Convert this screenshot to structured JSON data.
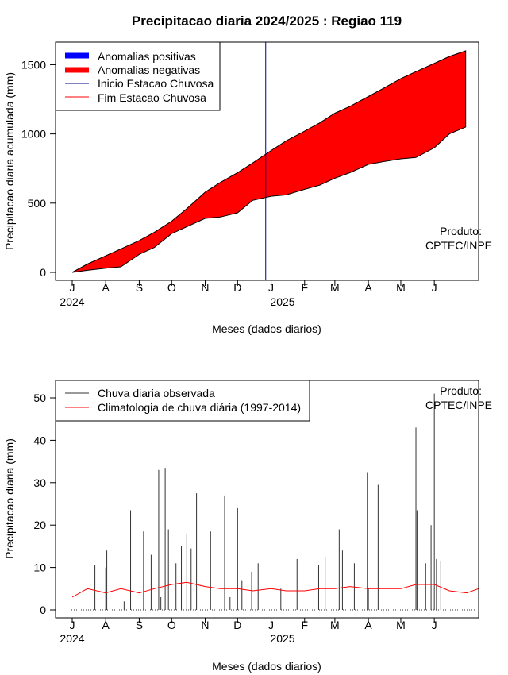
{
  "title": "Precipitacao diaria 2024/2025 : Regiao 119",
  "months": [
    "J",
    "A",
    "S",
    "O",
    "N",
    "D",
    "J",
    "F",
    "M",
    "A",
    "M",
    "J"
  ],
  "year_labels": [
    "2024",
    "2025"
  ],
  "xlabel": "Meses (dados diarios)",
  "product_label_1": "Produto:",
  "product_label_2": "CPTEC/INPE",
  "colors": {
    "positive": "#0000ff",
    "negative": "#ff0000",
    "start": "#00008b",
    "end": "#ff0000",
    "observed": "#333333",
    "clim": "#ff0000"
  },
  "chart_data": [
    {
      "type": "area",
      "ylabel": "Precipitacao diaria acumulada (mm)",
      "ylim": [
        0,
        1600
      ],
      "yticks": [
        0,
        500,
        1000,
        1500
      ],
      "legend": {
        "placement": "top-left",
        "entries": [
          "Anomalias positivas",
          "Anomalias negativas",
          "Inicio Estacao Chuvosa",
          "Fim Estacao Chuvosa"
        ]
      },
      "rain_season_start": "2024-12-27",
      "series": [
        {
          "name": "observed_cumulative",
          "x": [
            "2024-07-01",
            "2024-07-15",
            "2024-08-01",
            "2024-08-15",
            "2024-09-01",
            "2024-09-15",
            "2024-10-01",
            "2024-10-15",
            "2024-11-01",
            "2024-11-15",
            "2024-12-01",
            "2024-12-15",
            "2025-01-01",
            "2025-01-15",
            "2025-02-01",
            "2025-02-15",
            "2025-03-01",
            "2025-03-15",
            "2025-04-01",
            "2025-04-15",
            "2025-05-01",
            "2025-05-15",
            "2025-06-01",
            "2025-06-15",
            "2025-06-30"
          ],
          "y": [
            0,
            15,
            30,
            40,
            130,
            180,
            280,
            330,
            390,
            400,
            430,
            520,
            550,
            560,
            600,
            630,
            680,
            720,
            780,
            800,
            820,
            830,
            900,
            1000,
            1050
          ]
        },
        {
          "name": "climatology_cumulative",
          "x": [
            "2024-07-01",
            "2024-07-15",
            "2024-08-01",
            "2024-08-15",
            "2024-09-01",
            "2024-09-15",
            "2024-10-01",
            "2024-10-15",
            "2024-11-01",
            "2024-11-15",
            "2024-12-01",
            "2024-12-15",
            "2025-01-01",
            "2025-01-15",
            "2025-02-01",
            "2025-02-15",
            "2025-03-01",
            "2025-03-15",
            "2025-04-01",
            "2025-04-15",
            "2025-05-01",
            "2025-05-15",
            "2025-06-01",
            "2025-06-15",
            "2025-06-30"
          ],
          "y": [
            0,
            60,
            120,
            170,
            230,
            290,
            370,
            460,
            580,
            650,
            720,
            790,
            880,
            950,
            1020,
            1080,
            1150,
            1200,
            1270,
            1330,
            1400,
            1450,
            1510,
            1560,
            1600
          ]
        }
      ]
    },
    {
      "type": "bar",
      "ylabel": "Precipitacao diaria (mm)",
      "ylim": [
        0,
        52
      ],
      "yticks": [
        0,
        10,
        20,
        30,
        40,
        50
      ],
      "legend": {
        "placement": "top-left",
        "entries": [
          "Chuva diaria observada",
          "Climatologia de chuva diária (1997-2014)"
        ]
      },
      "observed_daily": {
        "x": [
          "2024-07-22",
          "2024-08-01",
          "2024-08-02",
          "2024-08-18",
          "2024-08-24",
          "2024-09-05",
          "2024-09-12",
          "2024-09-19",
          "2024-09-21",
          "2024-09-25",
          "2024-09-28",
          "2024-10-05",
          "2024-10-10",
          "2024-10-15",
          "2024-10-19",
          "2024-10-24",
          "2024-11-06",
          "2024-11-19",
          "2024-11-24",
          "2024-12-01",
          "2024-12-05",
          "2024-12-14",
          "2024-12-20",
          "2025-01-10",
          "2025-01-25",
          "2025-02-14",
          "2025-02-20",
          "2025-03-05",
          "2025-03-08",
          "2025-03-19",
          "2025-03-31",
          "2025-04-01",
          "2025-04-10",
          "2025-05-15",
          "2025-05-16",
          "2025-05-24",
          "2025-05-29",
          "2025-06-01",
          "2025-06-03",
          "2025-06-07"
        ],
        "y": [
          10.5,
          10,
          14,
          2,
          23.5,
          18.5,
          13,
          33,
          3,
          33.5,
          19,
          11,
          15,
          18,
          14.5,
          27.5,
          18.5,
          27,
          3,
          24,
          7,
          9,
          11,
          5,
          12,
          10.5,
          12.5,
          19,
          14,
          11,
          32.5,
          5,
          29.5,
          43,
          23.5,
          11,
          20,
          51,
          12,
          11.5
        ]
      },
      "climatology_daily": {
        "x": [
          "2024-07-01",
          "2024-07-15",
          "2024-08-01",
          "2024-08-15",
          "2024-09-01",
          "2024-09-15",
          "2024-10-01",
          "2024-10-15",
          "2024-11-01",
          "2024-11-15",
          "2024-12-01",
          "2024-12-15",
          "2025-01-01",
          "2025-01-15",
          "2025-02-01",
          "2025-02-15",
          "2025-03-01",
          "2025-03-15",
          "2025-04-01",
          "2025-04-15",
          "2025-05-01",
          "2025-05-15",
          "2025-06-01",
          "2025-06-15",
          "2025-07-01",
          "2025-07-12"
        ],
        "y": [
          3,
          5,
          4,
          5,
          4,
          5,
          6,
          6.5,
          5.5,
          5,
          5,
          4.5,
          5,
          4.5,
          4.5,
          5,
          5,
          5.5,
          5,
          5,
          5,
          6,
          6,
          4.5,
          4,
          5
        ]
      }
    }
  ]
}
